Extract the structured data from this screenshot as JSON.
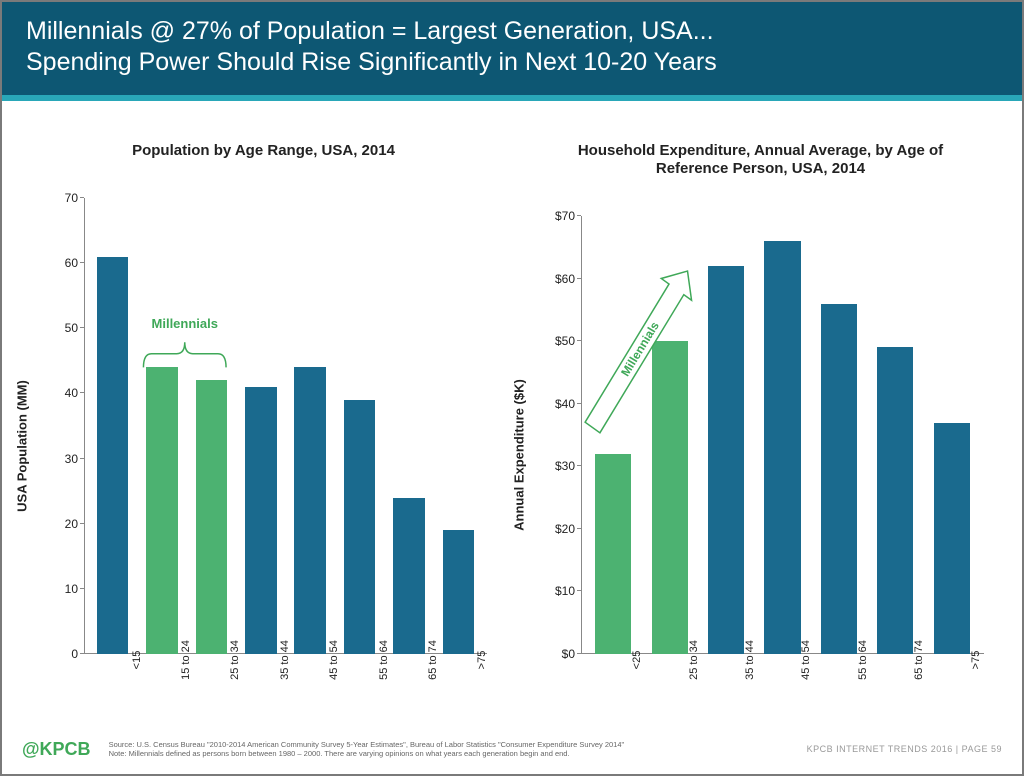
{
  "header": {
    "line1": "Millennials @ 27% of Population = Largest Generation, USA...",
    "line2": "Spending Power Should Rise Significantly in Next 10-20 Years",
    "bg_color": "#0d5773",
    "accent_color": "#29a7b8",
    "text_color": "#ffffff",
    "title_fontsize": 25
  },
  "chart_left": {
    "type": "bar",
    "title": "Population by Age Range, USA, 2014",
    "ylabel": "USA Population (MM)",
    "categories": [
      "<15",
      "15 to 24",
      "25 to 34",
      "35 to 44",
      "45 to 54",
      "55 to 64",
      "65 to 74",
      ">75"
    ],
    "values": [
      61,
      44,
      42,
      41,
      44,
      39,
      24,
      19
    ],
    "bar_colors": [
      "#1a6a8e",
      "#4cb271",
      "#4cb271",
      "#1a6a8e",
      "#1a6a8e",
      "#1a6a8e",
      "#1a6a8e",
      "#1a6a8e"
    ],
    "ylim": [
      0,
      70
    ],
    "ytick_step": 10,
    "ytick_prefix": "",
    "ytick_suffix": "",
    "annotation": {
      "label": "Millennials",
      "type": "brace",
      "color": "#3fa858",
      "span_idx": [
        1,
        2
      ]
    },
    "title_fontsize": 15,
    "label_fontsize": 13,
    "tick_fontsize": 12,
    "background_color": "#ffffff",
    "axis_color": "#888888",
    "bar_width": 0.64
  },
  "chart_right": {
    "type": "bar",
    "title": "Household Expenditure, Annual Average, by Age of Reference Person, USA, 2014",
    "ylabel": "Annual Expenditure ($K)",
    "categories": [
      "<25",
      "25 to 34",
      "35 to 44",
      "45 to 54",
      "55 to 64",
      "65 to 74",
      ">75"
    ],
    "values": [
      32,
      50,
      62,
      66,
      56,
      49,
      37
    ],
    "bar_colors": [
      "#4cb271",
      "#4cb271",
      "#1a6a8e",
      "#1a6a8e",
      "#1a6a8e",
      "#1a6a8e",
      "#1a6a8e"
    ],
    "ylim": [
      0,
      70
    ],
    "ytick_step": 10,
    "ytick_prefix": "$",
    "ytick_suffix": "",
    "annotation": {
      "label": "Millennials",
      "type": "arrow",
      "color": "#3fa858",
      "span_idx": [
        0,
        1
      ]
    },
    "title_fontsize": 15,
    "label_fontsize": 13,
    "tick_fontsize": 12,
    "background_color": "#ffffff",
    "axis_color": "#888888",
    "bar_width": 0.64
  },
  "footer": {
    "logo": "@KPCB",
    "logo_color": "#3fa858",
    "source_line1": "Source: U.S. Census Bureau \"2010-2014 American Community Survey 5-Year Estimates\", Bureau of Labor Statistics \"Consumer Expenditure Survey 2014\"",
    "source_line2": "Note: Millennials defined as persons born between 1980 – 2000. There are varying opinions on what years each generation begin and end.",
    "page_ref": "KPCB INTERNET TRENDS 2016   |   PAGE 59",
    "source_fontsize": 7.5,
    "pageref_color": "#999999"
  }
}
